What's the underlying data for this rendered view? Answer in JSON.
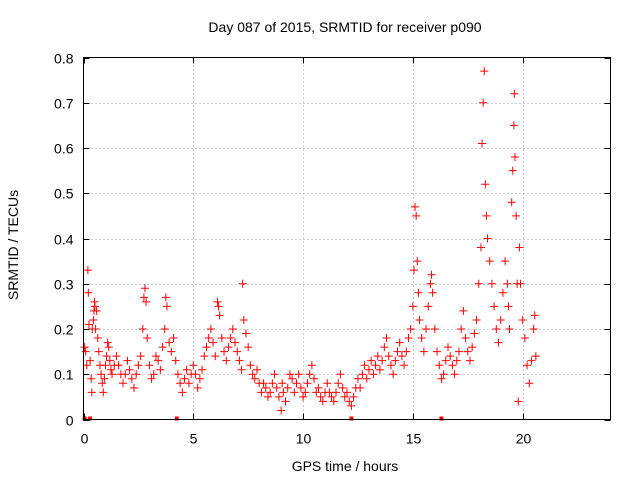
{
  "chart_data": {
    "type": "scatter",
    "title": "Day 087 of 2015, SRMTID for receiver p090",
    "xlabel": "GPS time / hours",
    "ylabel": "SRMTID / TECUs",
    "xlim": [
      0,
      24
    ],
    "ylim": [
      0,
      0.8
    ],
    "xticks": [
      0,
      5,
      10,
      15,
      20
    ],
    "xtick_labels": [
      "0",
      "5",
      "10",
      "15",
      "20"
    ],
    "yticks": [
      0,
      0.1,
      0.2,
      0.3,
      0.4,
      0.5,
      0.6,
      0.7,
      0.8
    ],
    "ytick_labels": [
      "0",
      "0.1",
      "0.2",
      "0.3",
      "0.4",
      "0.5",
      "0.6",
      "0.7",
      "0.8"
    ],
    "grid": true,
    "marker": "+",
    "color": "#ff0000",
    "series": [
      {
        "name": "SRMTID p090",
        "points": [
          [
            0.05,
            0.16
          ],
          [
            0.1,
            0.15
          ],
          [
            0.15,
            0.12
          ],
          [
            0.2,
            0.33
          ],
          [
            0.22,
            0.28
          ],
          [
            0.25,
            0.21
          ],
          [
            0.3,
            0.13
          ],
          [
            0.35,
            0.09
          ],
          [
            0.38,
            0.06
          ],
          [
            0.4,
            0.2
          ],
          [
            0.45,
            0.22
          ],
          [
            0.48,
            0.24
          ],
          [
            0.5,
            0.26
          ],
          [
            0.52,
            0.25
          ],
          [
            0.55,
            0.2
          ],
          [
            0.6,
            0.24
          ],
          [
            0.65,
            0.18
          ],
          [
            0.7,
            0.15
          ],
          [
            0.75,
            0.12
          ],
          [
            0.8,
            0.1
          ],
          [
            0.85,
            0.08
          ],
          [
            0.9,
            0.06
          ],
          [
            0.95,
            0.09
          ],
          [
            1.0,
            0.12
          ],
          [
            1.05,
            0.14
          ],
          [
            1.1,
            0.17
          ],
          [
            1.15,
            0.16
          ],
          [
            1.2,
            0.13
          ],
          [
            1.25,
            0.11
          ],
          [
            1.3,
            0.1
          ],
          [
            1.4,
            0.12
          ],
          [
            1.5,
            0.14
          ],
          [
            1.6,
            0.12
          ],
          [
            1.7,
            0.1
          ],
          [
            1.8,
            0.08
          ],
          [
            1.9,
            0.1
          ],
          [
            2.0,
            0.13
          ],
          [
            2.1,
            0.11
          ],
          [
            2.2,
            0.09
          ],
          [
            2.3,
            0.07
          ],
          [
            2.4,
            0.1
          ],
          [
            2.5,
            0.12
          ],
          [
            2.6,
            0.14
          ],
          [
            2.7,
            0.2
          ],
          [
            2.75,
            0.27
          ],
          [
            2.8,
            0.29
          ],
          [
            2.85,
            0.26
          ],
          [
            2.9,
            0.18
          ],
          [
            3.0,
            0.12
          ],
          [
            3.1,
            0.09
          ],
          [
            3.2,
            0.1
          ],
          [
            3.3,
            0.14
          ],
          [
            3.4,
            0.13
          ],
          [
            3.5,
            0.11
          ],
          [
            3.6,
            0.16
          ],
          [
            3.7,
            0.2
          ],
          [
            3.75,
            0.27
          ],
          [
            3.8,
            0.25
          ],
          [
            3.9,
            0.17
          ],
          [
            4.0,
            0.15
          ],
          [
            4.1,
            0.18
          ],
          [
            4.2,
            0.13
          ],
          [
            4.3,
            0.1
          ],
          [
            4.4,
            0.08
          ],
          [
            4.5,
            0.06
          ],
          [
            4.6,
            0.09
          ],
          [
            4.7,
            0.11
          ],
          [
            4.8,
            0.08
          ],
          [
            4.9,
            0.1
          ],
          [
            5.0,
            0.12
          ],
          [
            5.1,
            0.1
          ],
          [
            5.2,
            0.07
          ],
          [
            5.3,
            0.09
          ],
          [
            5.4,
            0.11
          ],
          [
            5.5,
            0.14
          ],
          [
            5.6,
            0.16
          ],
          [
            5.7,
            0.18
          ],
          [
            5.8,
            0.2
          ],
          [
            5.9,
            0.17
          ],
          [
            6.0,
            0.14
          ],
          [
            6.1,
            0.26
          ],
          [
            6.15,
            0.25
          ],
          [
            6.2,
            0.23
          ],
          [
            6.3,
            0.18
          ],
          [
            6.4,
            0.15
          ],
          [
            6.5,
            0.13
          ],
          [
            6.6,
            0.16
          ],
          [
            6.7,
            0.18
          ],
          [
            6.8,
            0.2
          ],
          [
            6.9,
            0.17
          ],
          [
            7.0,
            0.15
          ],
          [
            7.1,
            0.13
          ],
          [
            7.2,
            0.11
          ],
          [
            7.25,
            0.3
          ],
          [
            7.3,
            0.22
          ],
          [
            7.4,
            0.19
          ],
          [
            7.5,
            0.16
          ],
          [
            7.6,
            0.12
          ],
          [
            7.7,
            0.1
          ],
          [
            7.8,
            0.09
          ],
          [
            7.9,
            0.11
          ],
          [
            8.0,
            0.08
          ],
          [
            8.1,
            0.06
          ],
          [
            8.2,
            0.08
          ],
          [
            8.3,
            0.07
          ],
          [
            8.4,
            0.05
          ],
          [
            8.5,
            0.06
          ],
          [
            8.6,
            0.08
          ],
          [
            8.7,
            0.1
          ],
          [
            8.8,
            0.07
          ],
          [
            8.9,
            0.05
          ],
          [
            9.0,
            0.02
          ],
          [
            9.05,
            0.08
          ],
          [
            9.1,
            0.06
          ],
          [
            9.2,
            0.04
          ],
          [
            9.3,
            0.07
          ],
          [
            9.4,
            0.1
          ],
          [
            9.5,
            0.09
          ],
          [
            9.6,
            0.06
          ],
          [
            9.7,
            0.08
          ],
          [
            9.8,
            0.1
          ],
          [
            9.9,
            0.07
          ],
          [
            10.0,
            0.05
          ],
          [
            10.1,
            0.06
          ],
          [
            10.2,
            0.08
          ],
          [
            10.3,
            0.1
          ],
          [
            10.4,
            0.12
          ],
          [
            10.5,
            0.09
          ],
          [
            10.6,
            0.06
          ],
          [
            10.7,
            0.07
          ],
          [
            10.8,
            0.05
          ],
          [
            10.9,
            0.04
          ],
          [
            11.0,
            0.06
          ],
          [
            11.1,
            0.08
          ],
          [
            11.2,
            0.06
          ],
          [
            11.3,
            0.05
          ],
          [
            11.4,
            0.04
          ],
          [
            11.5,
            0.06
          ],
          [
            11.6,
            0.08
          ],
          [
            11.7,
            0.1
          ],
          [
            11.8,
            0.07
          ],
          [
            11.9,
            0.05
          ],
          [
            12.0,
            0.06
          ],
          [
            12.1,
            0.04
          ],
          [
            12.2,
            0.03
          ],
          [
            12.3,
            0.05
          ],
          [
            12.4,
            0.07
          ],
          [
            12.5,
            0.09
          ],
          [
            12.6,
            0.07
          ],
          [
            12.7,
            0.1
          ],
          [
            12.8,
            0.12
          ],
          [
            12.9,
            0.09
          ],
          [
            13.0,
            0.11
          ],
          [
            13.1,
            0.13
          ],
          [
            13.2,
            0.1
          ],
          [
            13.3,
            0.12
          ],
          [
            13.4,
            0.14
          ],
          [
            13.5,
            0.11
          ],
          [
            13.6,
            0.13
          ],
          [
            13.7,
            0.16
          ],
          [
            13.8,
            0.18
          ],
          [
            13.9,
            0.14
          ],
          [
            14.0,
            0.12
          ],
          [
            14.1,
            0.1
          ],
          [
            14.2,
            0.13
          ],
          [
            14.3,
            0.15
          ],
          [
            14.4,
            0.17
          ],
          [
            14.5,
            0.14
          ],
          [
            14.6,
            0.12
          ],
          [
            14.7,
            0.15
          ],
          [
            14.8,
            0.18
          ],
          [
            14.9,
            0.2
          ],
          [
            15.0,
            0.25
          ],
          [
            15.05,
            0.33
          ],
          [
            15.1,
            0.47
          ],
          [
            15.15,
            0.45
          ],
          [
            15.2,
            0.35
          ],
          [
            15.25,
            0.28
          ],
          [
            15.3,
            0.22
          ],
          [
            15.4,
            0.18
          ],
          [
            15.5,
            0.15
          ],
          [
            15.6,
            0.2
          ],
          [
            15.7,
            0.25
          ],
          [
            15.8,
            0.3
          ],
          [
            15.85,
            0.32
          ],
          [
            15.9,
            0.28
          ],
          [
            16.0,
            0.2
          ],
          [
            16.1,
            0.15
          ],
          [
            16.2,
            0.12
          ],
          [
            16.3,
            0.09
          ],
          [
            16.4,
            0.1
          ],
          [
            16.5,
            0.13
          ],
          [
            16.6,
            0.16
          ],
          [
            16.7,
            0.14
          ],
          [
            16.8,
            0.12
          ],
          [
            16.9,
            0.1
          ],
          [
            17.0,
            0.13
          ],
          [
            17.1,
            0.15
          ],
          [
            17.2,
            0.2
          ],
          [
            17.3,
            0.24
          ],
          [
            17.4,
            0.18
          ],
          [
            17.5,
            0.15
          ],
          [
            17.6,
            0.13
          ],
          [
            17.7,
            0.16
          ],
          [
            17.8,
            0.19
          ],
          [
            17.9,
            0.22
          ],
          [
            18.0,
            0.3
          ],
          [
            18.1,
            0.38
          ],
          [
            18.15,
            0.61
          ],
          [
            18.2,
            0.7
          ],
          [
            18.25,
            0.77
          ],
          [
            18.3,
            0.52
          ],
          [
            18.35,
            0.45
          ],
          [
            18.4,
            0.4
          ],
          [
            18.5,
            0.35
          ],
          [
            18.6,
            0.3
          ],
          [
            18.7,
            0.25
          ],
          [
            18.8,
            0.2
          ],
          [
            18.9,
            0.17
          ],
          [
            19.0,
            0.22
          ],
          [
            19.1,
            0.28
          ],
          [
            19.2,
            0.35
          ],
          [
            19.3,
            0.3
          ],
          [
            19.35,
            0.25
          ],
          [
            19.4,
            0.2
          ],
          [
            19.5,
            0.48
          ],
          [
            19.55,
            0.55
          ],
          [
            19.6,
            0.65
          ],
          [
            19.62,
            0.72
          ],
          [
            19.65,
            0.58
          ],
          [
            19.7,
            0.45
          ],
          [
            19.75,
            0.3
          ],
          [
            19.8,
            0.04
          ],
          [
            19.85,
            0.38
          ],
          [
            19.9,
            0.3
          ],
          [
            20.0,
            0.22
          ],
          [
            20.1,
            0.18
          ],
          [
            20.2,
            0.12
          ],
          [
            20.3,
            0.08
          ],
          [
            20.4,
            0.13
          ],
          [
            20.5,
            0.2
          ],
          [
            20.55,
            0.23
          ],
          [
            20.6,
            0.14
          ]
        ]
      }
    ],
    "baseline_markers": [
      0.05,
      0.3,
      4.25,
      12.2,
      16.3
    ]
  }
}
